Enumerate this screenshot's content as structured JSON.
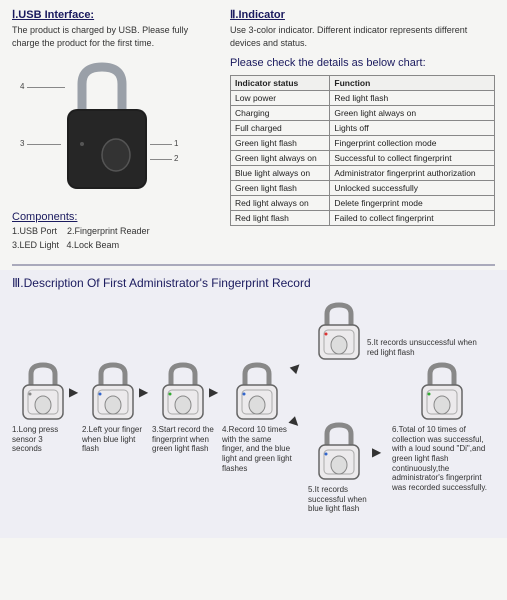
{
  "section1": {
    "heading": "Ⅰ.USB Interface:",
    "body": "The product is charged by USB. Please fully charge the product for the first time.",
    "components_heading": "Components:",
    "components": "1.USB Port    2.Fingerprint Reader\n3.LED Light   4.Lock Beam",
    "callouts": {
      "c1": "1",
      "c2": "2",
      "c3": "3",
      "c4": "4"
    }
  },
  "section2": {
    "heading": "Ⅱ.Indicator",
    "body": "Use 3-color indicator. Different indicator represents different devices and status.",
    "chart_heading": "Please check the details as below chart:",
    "table": {
      "col1": "Indicator status",
      "col2": "Function",
      "rows": [
        [
          "Low power",
          "Red light flash"
        ],
        [
          "Charging",
          "Green light always on"
        ],
        [
          "Full charged",
          "Lights off"
        ],
        [
          "Green light flash",
          "Fingerprint collection mode"
        ],
        [
          "Green light always on",
          "Successful to collect fingerprint"
        ],
        [
          "Blue light always on",
          "Administrator fingerprint authorization"
        ],
        [
          "Green light flash",
          "Unlocked successfully"
        ],
        [
          "Red light always on",
          "Delete fingerprint mode"
        ],
        [
          "Red light flash",
          "Failed to collect fingerprint"
        ]
      ]
    }
  },
  "section3": {
    "heading": "Ⅲ.Description Of First Administrator's Fingerprint Record",
    "steps": {
      "s1": "1.Long press sensor 3 seconds",
      "s2": "2.Left your finger when blue light flash",
      "s3": "3.Start record the fingerprint when green light flash",
      "s4": "4.Record 10 times with the same finger, and the blue light and green light flashes",
      "s5a": "5.It records unsuccessful when red light flash",
      "s5b": "5.It records successful when blue light flash",
      "s6": "6.Total of 10 times of collection was successful, with a loud sound \"Di\",and green light flash continuously,the administrator's fingerprint was recorded successfully."
    }
  },
  "style": {
    "lock_body_dark": "#2a2a2a",
    "lock_body_light": "#e8e8ea",
    "lock_outline": "#444",
    "shackle": "#aaa",
    "led_red": "#d33",
    "led_green": "#3a3",
    "led_blue": "#36c"
  }
}
